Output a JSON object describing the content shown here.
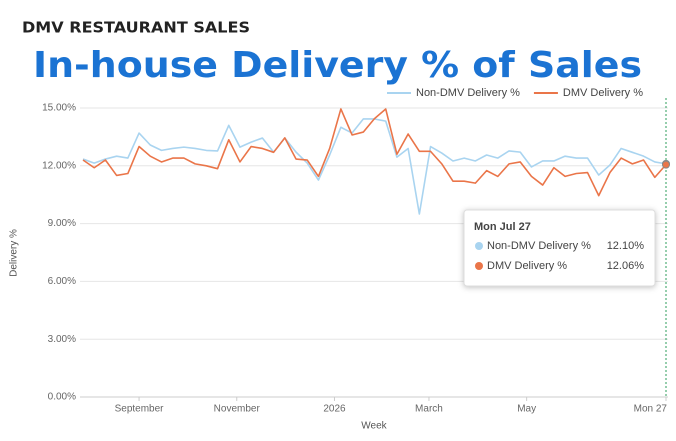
{
  "chart_data": {
    "type": "line",
    "supertitle": "DMV RESTAURANT SALES",
    "title": "In-house Delivery % of Sales",
    "xlabel": "Week",
    "ylabel": "Delivery %",
    "legend": "top-right",
    "grid": true,
    "xlim": [
      0,
      52
    ],
    "xticks": [
      {
        "value": 5,
        "label": "September"
      },
      {
        "value": 13.714,
        "label": "November"
      },
      {
        "value": 22.43,
        "label": "2026"
      },
      {
        "value": 30.857,
        "label": "March"
      },
      {
        "value": 39.571,
        "label": "May"
      },
      {
        "value": 52,
        "label": "Mon 27"
      }
    ],
    "ylim": [
      0,
      15
    ],
    "yticks": [
      {
        "value": 0,
        "label": "0.00%"
      },
      {
        "value": 3,
        "label": "3.00%"
      },
      {
        "value": 6,
        "label": "6.00%"
      },
      {
        "value": 9,
        "label": "9.00%"
      },
      {
        "value": 12,
        "label": "12.00%"
      },
      {
        "value": 15,
        "label": "15.00%"
      }
    ],
    "series": [
      {
        "name": "Non-DMV Delivery %",
        "color": "#a9d4f0",
        "values": [
          12.35,
          12.14,
          12.35,
          12.5,
          12.4,
          13.7,
          13.08,
          12.8,
          12.9,
          12.97,
          12.9,
          12.8,
          12.77,
          14.1,
          12.97,
          13.23,
          13.44,
          12.71,
          13.44,
          12.71,
          12.14,
          11.26,
          12.56,
          14.0,
          13.7,
          14.43,
          14.43,
          14.32,
          12.45,
          12.9,
          9.5,
          13.0,
          12.66,
          12.25,
          12.4,
          12.25,
          12.56,
          12.4,
          12.77,
          12.71,
          11.94,
          12.25,
          12.25,
          12.5,
          12.4,
          12.4,
          11.52,
          12.04,
          12.9,
          12.7,
          12.5,
          12.2,
          12.1
        ]
      },
      {
        "name": "DMV Delivery %",
        "color": "#ea7549",
        "values": [
          12.3,
          11.9,
          12.3,
          11.5,
          11.6,
          13.0,
          12.5,
          12.2,
          12.4,
          12.4,
          12.1,
          12.0,
          11.85,
          13.35,
          12.2,
          13.0,
          12.9,
          12.7,
          13.45,
          12.35,
          12.3,
          11.45,
          12.9,
          14.95,
          13.6,
          13.75,
          14.45,
          14.95,
          12.6,
          13.65,
          12.75,
          12.75,
          12.1,
          11.2,
          11.2,
          11.1,
          11.75,
          11.45,
          12.1,
          12.2,
          11.45,
          11.0,
          11.9,
          11.45,
          11.6,
          11.65,
          10.45,
          11.65,
          12.4,
          12.1,
          12.3,
          11.4,
          12.06
        ]
      }
    ],
    "tooltip": {
      "title": "Mon Jul 27",
      "values": [
        12.1,
        12.06
      ],
      "value_labels": [
        "12.10%",
        "12.06%"
      ]
    }
  }
}
